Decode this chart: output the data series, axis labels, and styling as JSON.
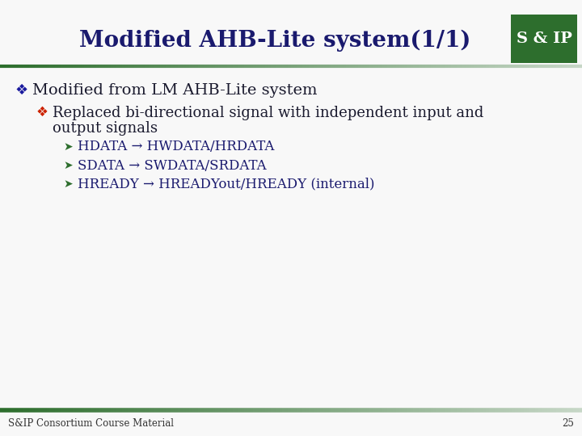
{
  "title": "Modified AHB-Lite system(1/1)",
  "title_color": "#1a1a6e",
  "bg_color": "#f8f8f8",
  "logo_bg": "#2d6e2d",
  "logo_text": "S & IP",
  "logo_text_color": "#ffffff",
  "bullet1_text": "Modified from LM AHB-Lite system",
  "bullet1_color": "#1a1a9e",
  "bullet1_symbol": "❖",
  "bullet2_symbol": "❖",
  "bullet2_color": "#cc2200",
  "bullet2_line1": "Replaced bi-directional signal with independent input and",
  "bullet2_line2": "output signals",
  "sub_bullet": "➤",
  "sub_items": [
    "HDATA → HWDATA/HRDATA",
    "SDATA → SWDATA/SRDATA",
    "HREADY → HREADYout/HREADY (internal)"
  ],
  "sub_color": "#1a1a6e",
  "footer_text": "S&IP Consortium Course Material",
  "footer_color": "#333333",
  "page_number": "25"
}
